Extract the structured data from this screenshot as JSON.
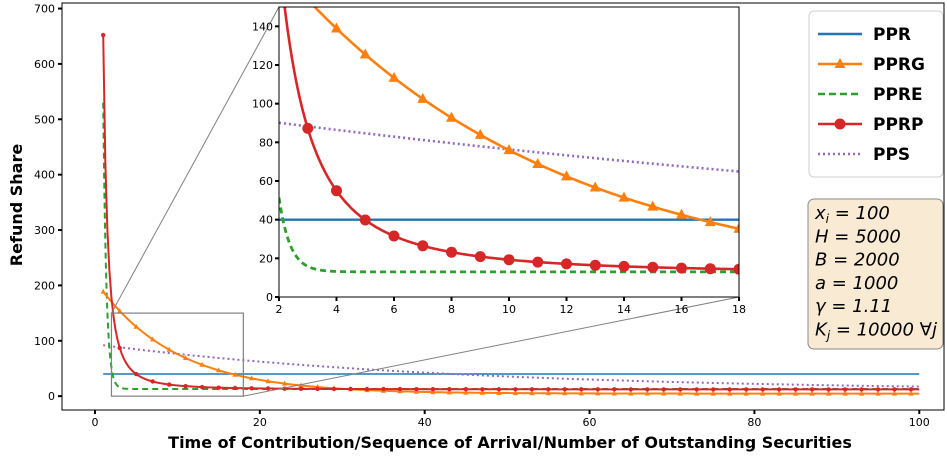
{
  "chart_data": {
    "type": "line",
    "xlabel": "Time of Contribution/Sequence of Arrival/Number of Outstanding Securities",
    "ylabel": "Refund Share",
    "xlim": [
      -4,
      103
    ],
    "ylim": [
      -25,
      710
    ],
    "xticks": [
      0,
      20,
      40,
      60,
      80,
      100
    ],
    "yticks": [
      0,
      100,
      200,
      300,
      400,
      500,
      600,
      700
    ],
    "legend_position": "top-right",
    "series": [
      {
        "key": "ppr",
        "name": "PPR",
        "color": "#1f77b4",
        "style": "solid",
        "marker": "none"
      },
      {
        "key": "pprg",
        "name": "PPRG",
        "color": "#ff7f0e",
        "style": "solid",
        "marker": "triangle"
      },
      {
        "key": "ppre",
        "name": "PPRE",
        "color": "#2ca02c",
        "style": "dashed",
        "marker": "none"
      },
      {
        "key": "pprp",
        "name": "PPRP",
        "color": "#d62728",
        "style": "solid",
        "marker": "circle"
      },
      {
        "key": "pps",
        "name": "PPS",
        "color": "#9467bd",
        "style": "dotted",
        "marker": "none"
      }
    ],
    "inset": {
      "xlim": [
        2,
        18
      ],
      "ylim": [
        0,
        150
      ],
      "xticks": [
        2,
        4,
        6,
        8,
        10,
        12,
        14,
        16,
        18
      ],
      "yticks": [
        0,
        20,
        40,
        60,
        80,
        100,
        120,
        140
      ]
    },
    "zoom_box": {
      "x": [
        2,
        18
      ],
      "y": [
        0,
        150
      ]
    }
  },
  "params": [
    {
      "sym": "x",
      "sub": "i",
      "rest": " = 100"
    },
    {
      "sym": "H",
      "sub": "",
      "rest": " = 5000"
    },
    {
      "sym": "B",
      "sub": "",
      "rest": " = 2000"
    },
    {
      "sym": "a",
      "sub": "",
      "rest": " = 1000"
    },
    {
      "sym": "γ",
      "sub": "",
      "rest": " = 1.11"
    },
    {
      "sym": "K",
      "sub": "j",
      "rest": " = 10000 ∀j"
    }
  ],
  "colors": {
    "params_box_fill": "#f8ead3",
    "params_box_border": "#8a8a8a",
    "zoom_box": "#808080"
  }
}
